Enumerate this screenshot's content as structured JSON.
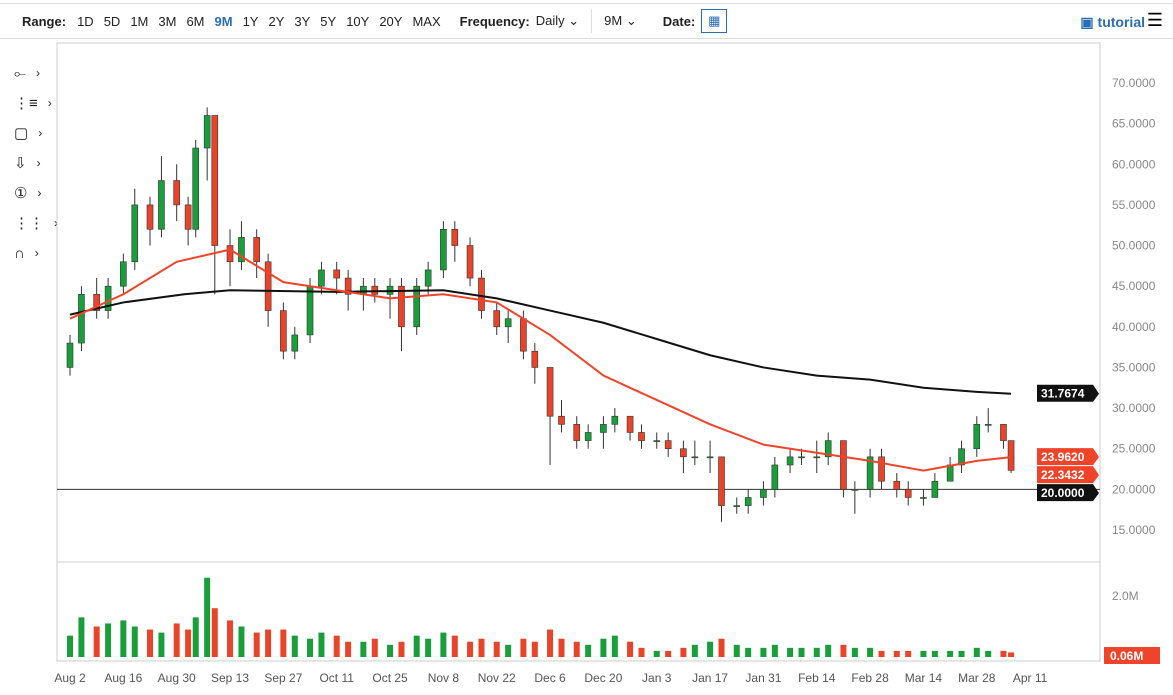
{
  "toolbar": {
    "range_label": "Range:",
    "ranges": [
      "1D",
      "5D",
      "1M",
      "3M",
      "6M",
      "9M",
      "1Y",
      "2Y",
      "3Y",
      "5Y",
      "10Y",
      "20Y",
      "MAX"
    ],
    "active_range": "9M",
    "frequency_label": "Frequency:",
    "frequency": "Daily",
    "period": "9M",
    "date_label": "Date:",
    "tutorial": "tutorial"
  },
  "tools": [
    "line-tool-icon",
    "fib-tool-icon",
    "rectangle-tool-icon",
    "arrow-tool-icon",
    "annotation-tool-icon",
    "measure-tool-icon",
    "magnet-icon"
  ],
  "chart_data": {
    "type": "candlestick",
    "colors": {
      "up": "#1a9e3b",
      "down": "#e8442a",
      "ma_fast": "#f0442a",
      "ma_slow": "#111111"
    },
    "y_ticks": [
      "15.0000",
      "20.0000",
      "25.0000",
      "30.0000",
      "35.0000",
      "40.0000",
      "45.0000",
      "50.0000",
      "55.0000",
      "60.0000",
      "65.0000",
      "70.0000"
    ],
    "ylim": [
      13,
      72
    ],
    "x_ticks": [
      "Aug 2",
      "Aug 16",
      "Aug 30",
      "Sep 13",
      "Sep 27",
      "Oct 11",
      "Oct 25",
      "Nov 8",
      "Nov 22",
      "Dec 6",
      "Dec 20",
      "Jan 3",
      "Jan 17",
      "Jan 31",
      "Feb 14",
      "Feb 28",
      "Mar 14",
      "Mar 28",
      "Apr 11"
    ],
    "horizontal_line": 20,
    "price_labels": [
      {
        "text": "31.7674",
        "value": 31.7674,
        "color": "#111111"
      },
      {
        "text": "23.9620",
        "value": 23.962,
        "color": "#f0442a"
      },
      {
        "text": "22.3432",
        "value": 22.3432,
        "color": "#f0442a"
      },
      {
        "text": "20.0000",
        "value": 20,
        "color": "#111111"
      }
    ],
    "candles": [
      [
        "Aug 2",
        35,
        39,
        34,
        38
      ],
      [
        "Aug 5",
        38,
        45,
        37,
        44
      ],
      [
        "Aug 9",
        44,
        46,
        41,
        42
      ],
      [
        "Aug 12",
        42,
        46,
        41,
        45
      ],
      [
        "Aug 16",
        45,
        49,
        44,
        48
      ],
      [
        "Aug 19",
        48,
        57,
        47,
        55
      ],
      [
        "Aug 23",
        55,
        56,
        50,
        52
      ],
      [
        "Aug 26",
        52,
        61,
        51,
        58
      ],
      [
        "Aug 30",
        58,
        60,
        53,
        55
      ],
      [
        "Sep 2",
        55,
        56,
        50,
        52
      ],
      [
        "Sep 4",
        52,
        63,
        51,
        62
      ],
      [
        "Sep 7",
        62,
        67,
        58,
        66
      ],
      [
        "Sep 9",
        66,
        66,
        44,
        50
      ],
      [
        "Sep 13",
        50,
        52,
        45,
        48
      ],
      [
        "Sep 16",
        48,
        53,
        47,
        51
      ],
      [
        "Sep 20",
        51,
        52,
        46,
        48
      ],
      [
        "Sep 23",
        48,
        49,
        40,
        42
      ],
      [
        "Sep 27",
        42,
        43,
        36,
        37
      ],
      [
        "Sep 30",
        37,
        40,
        36,
        39
      ],
      [
        "Oct 4",
        39,
        46,
        38,
        45
      ],
      [
        "Oct 7",
        45,
        48,
        44,
        47
      ],
      [
        "Oct 11",
        47,
        48,
        44,
        46
      ],
      [
        "Oct 14",
        46,
        47,
        42,
        44
      ],
      [
        "Oct 18",
        44,
        46,
        42,
        45
      ],
      [
        "Oct 21",
        45,
        46,
        43,
        44
      ],
      [
        "Oct 25",
        44,
        46,
        41,
        45
      ],
      [
        "Oct 28",
        45,
        46,
        37,
        40
      ],
      [
        "Nov 1",
        40,
        46,
        39,
        45
      ],
      [
        "Nov 4",
        45,
        48,
        44,
        47
      ],
      [
        "Nov 8",
        47,
        53,
        46,
        52
      ],
      [
        "Nov 11",
        52,
        53,
        48,
        50
      ],
      [
        "Nov 15",
        50,
        51,
        45,
        46
      ],
      [
        "Nov 18",
        46,
        47,
        41,
        42
      ],
      [
        "Nov 22",
        42,
        43,
        39,
        40
      ],
      [
        "Nov 25",
        40,
        42,
        38,
        41
      ],
      [
        "Nov 29",
        41,
        42,
        36,
        37
      ],
      [
        "Dec 2",
        37,
        38,
        33,
        35
      ],
      [
        "Dec 6",
        35,
        35,
        23,
        29
      ],
      [
        "Dec 9",
        29,
        31,
        27,
        28
      ],
      [
        "Dec 13",
        28,
        29,
        25,
        26
      ],
      [
        "Dec 16",
        26,
        28,
        25,
        27
      ],
      [
        "Dec 20",
        27,
        29,
        25,
        28
      ],
      [
        "Dec 23",
        28,
        30,
        27,
        29
      ],
      [
        "Dec 27",
        29,
        29,
        26,
        27
      ],
      [
        "Dec 30",
        27,
        28,
        25,
        26
      ],
      [
        "Jan 3",
        26,
        27,
        25,
        26
      ],
      [
        "Jan 6",
        26,
        27,
        24,
        25
      ],
      [
        "Jan 10",
        25,
        26,
        22,
        24
      ],
      [
        "Jan 13",
        24,
        26,
        23,
        24
      ],
      [
        "Jan 17",
        24,
        26,
        22,
        24
      ],
      [
        "Jan 20",
        24,
        24,
        16,
        18
      ],
      [
        "Jan 24",
        18,
        19,
        17,
        18
      ],
      [
        "Jan 27",
        18,
        20,
        17,
        19
      ],
      [
        "Jan 31",
        19,
        21,
        18,
        20
      ],
      [
        "Feb 3",
        20,
        24,
        19,
        23
      ],
      [
        "Feb 7",
        23,
        25,
        22,
        24
      ],
      [
        "Feb 10",
        24,
        25,
        23,
        24
      ],
      [
        "Feb 14",
        24,
        26,
        22,
        24
      ],
      [
        "Feb 17",
        24,
        27,
        23,
        26
      ],
      [
        "Feb 21",
        26,
        26,
        19,
        20
      ],
      [
        "Feb 24",
        20,
        21,
        17,
        20
      ],
      [
        "Feb 28",
        20,
        25,
        19,
        24
      ],
      [
        "Mar 3",
        24,
        25,
        20,
        21
      ],
      [
        "Mar 7",
        21,
        22,
        19,
        20
      ],
      [
        "Mar 10",
        20,
        21,
        18,
        19
      ],
      [
        "Mar 14",
        19,
        20,
        18,
        19
      ],
      [
        "Mar 17",
        19,
        22,
        19,
        21
      ],
      [
        "Mar 21",
        21,
        24,
        21,
        23
      ],
      [
        "Mar 24",
        23,
        26,
        22,
        25
      ],
      [
        "Mar 28",
        25,
        29,
        24,
        28
      ],
      [
        "Mar 31",
        28,
        30,
        27,
        28
      ],
      [
        "Apr 4",
        28,
        28,
        25,
        26
      ],
      [
        "Apr 6",
        26,
        26,
        22,
        22.34
      ]
    ],
    "volume": {
      "ticks": [
        "2.0M",
        "0.06M"
      ],
      "values": [
        0.7,
        1.3,
        1.0,
        1.1,
        1.2,
        1.0,
        0.9,
        0.8,
        1.1,
        0.9,
        1.3,
        2.6,
        1.6,
        1.2,
        1.0,
        0.8,
        0.9,
        0.9,
        0.7,
        0.6,
        0.8,
        0.7,
        0.5,
        0.5,
        0.6,
        0.4,
        0.5,
        0.7,
        0.6,
        0.8,
        0.7,
        0.5,
        0.6,
        0.5,
        0.4,
        0.6,
        0.5,
        0.9,
        0.6,
        0.5,
        0.4,
        0.6,
        0.7,
        0.5,
        0.3,
        0.2,
        0.2,
        0.3,
        0.4,
        0.5,
        0.6,
        0.4,
        0.3,
        0.3,
        0.4,
        0.3,
        0.3,
        0.3,
        0.4,
        0.4,
        0.3,
        0.3,
        0.2,
        0.2,
        0.2,
        0.2,
        0.2,
        0.2,
        0.2,
        0.3,
        0.2,
        0.2,
        0.15
      ]
    },
    "ma_fast": [
      [
        "Aug 2",
        41
      ],
      [
        "Aug 16",
        44
      ],
      [
        "Aug 30",
        48
      ],
      [
        "Sep 13",
        49.5
      ],
      [
        "Sep 27",
        45.5
      ],
      [
        "Oct 11",
        44.5
      ],
      [
        "Oct 25",
        43.5
      ],
      [
        "Nov 8",
        44
      ],
      [
        "Nov 22",
        43
      ],
      [
        "Dec 6",
        39
      ],
      [
        "Dec 20",
        34
      ],
      [
        "Jan 3",
        31
      ],
      [
        "Jan 17",
        28
      ],
      [
        "Jan 31",
        25.5
      ],
      [
        "Feb 14",
        24.5
      ],
      [
        "Feb 28",
        23.5
      ],
      [
        "Mar 14",
        22.3
      ],
      [
        "Mar 28",
        23.5
      ],
      [
        "Apr 6",
        23.96
      ]
    ],
    "ma_slow": [
      [
        "Aug 2",
        41.5
      ],
      [
        "Aug 16",
        43
      ],
      [
        "Sep 1",
        44
      ],
      [
        "Sep 13",
        44.5
      ],
      [
        "Oct 11",
        44.3
      ],
      [
        "Nov 8",
        44.5
      ],
      [
        "Nov 22",
        43.5
      ],
      [
        "Dec 6",
        42
      ],
      [
        "Dec 20",
        40.5
      ],
      [
        "Jan 3",
        38.5
      ],
      [
        "Jan 17",
        36.5
      ],
      [
        "Jan 31",
        35
      ],
      [
        "Feb 14",
        34
      ],
      [
        "Feb 28",
        33.5
      ],
      [
        "Mar 14",
        32.5
      ],
      [
        "Mar 28",
        32
      ],
      [
        "Apr 6",
        31.77
      ]
    ]
  }
}
